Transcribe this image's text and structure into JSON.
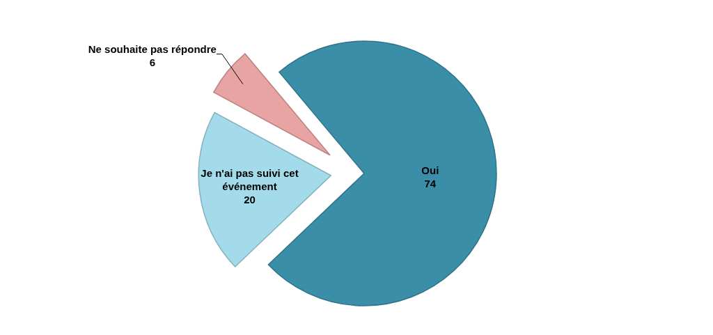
{
  "chart_data": {
    "type": "pie",
    "categories": [
      "Oui",
      "Je n'ai pas suivi cet événement",
      "Ne souhaite pas répondre"
    ],
    "values": [
      74,
      20,
      6
    ],
    "colors": [
      "#3a8ea8",
      "#a3dbea",
      "#e8a3a3"
    ],
    "data_labels": true
  }
}
